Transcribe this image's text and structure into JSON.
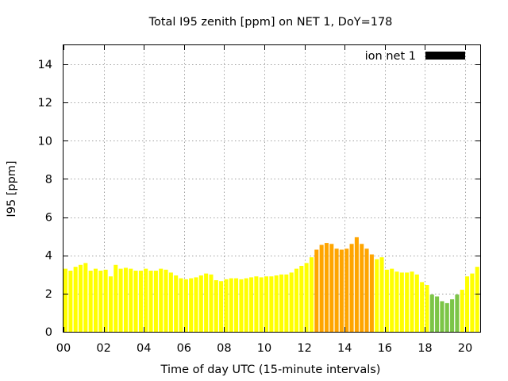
{
  "chart_data": {
    "type": "bar",
    "title": "Total I95 zenith [ppm] on NET 1, DoY=178",
    "xlabel": "Time of day UTC (15-minute intervals)",
    "ylabel": "I95 [ppm]",
    "xlim": [
      0,
      20.75
    ],
    "ylim": [
      0,
      15
    ],
    "x_ticks": [
      0,
      2,
      4,
      6,
      8,
      10,
      12,
      14,
      16,
      18,
      20
    ],
    "x_tick_labels": [
      "00",
      "02",
      "04",
      "06",
      "08",
      "10",
      "12",
      "14",
      "16",
      "18",
      "20"
    ],
    "y_ticks": [
      0,
      2,
      4,
      6,
      8,
      10,
      12,
      14
    ],
    "y_tick_labels": [
      "0",
      "2",
      "4",
      "6",
      "8",
      "10",
      "12",
      "14"
    ],
    "grid": true,
    "legend": {
      "label": "ion net 1",
      "color": "#000000",
      "placement": "top-right"
    },
    "bar_width_hours": 0.2,
    "x_start": 0,
    "x_step_hours": 0.25,
    "values": [
      3.3,
      3.2,
      3.4,
      3.5,
      3.6,
      3.2,
      3.3,
      3.2,
      3.25,
      2.9,
      3.5,
      3.3,
      3.35,
      3.3,
      3.2,
      3.2,
      3.3,
      3.2,
      3.2,
      3.3,
      3.25,
      3.1,
      2.95,
      2.8,
      2.75,
      2.8,
      2.85,
      2.95,
      3.05,
      3.0,
      2.7,
      2.65,
      2.75,
      2.8,
      2.8,
      2.75,
      2.8,
      2.85,
      2.9,
      2.85,
      2.9,
      2.9,
      2.95,
      3.0,
      3.0,
      3.1,
      3.3,
      3.45,
      3.6,
      3.9,
      4.3,
      4.55,
      4.65,
      4.6,
      4.35,
      4.3,
      4.35,
      4.6,
      4.95,
      4.6,
      4.35,
      4.05,
      3.8,
      3.9,
      3.25,
      3.3,
      3.15,
      3.1,
      3.1,
      3.15,
      3.0,
      2.6,
      2.45,
      1.95,
      1.85,
      1.6,
      1.5,
      1.7,
      1.95,
      2.2,
      2.9,
      3.05,
      3.4
    ],
    "colors": {
      "yellow": "#ffff00",
      "orange": "#ffa500",
      "green": "#7cc547"
    },
    "color_ranges": [
      {
        "from_index": 0,
        "to_index": 49,
        "color": "yellow"
      },
      {
        "from_index": 50,
        "to_index": 61,
        "color": "orange"
      },
      {
        "from_index": 62,
        "to_index": 72,
        "color": "yellow"
      },
      {
        "from_index": 73,
        "to_index": 78,
        "color": "green"
      },
      {
        "from_index": 79,
        "to_index": 82,
        "color": "yellow"
      }
    ]
  }
}
